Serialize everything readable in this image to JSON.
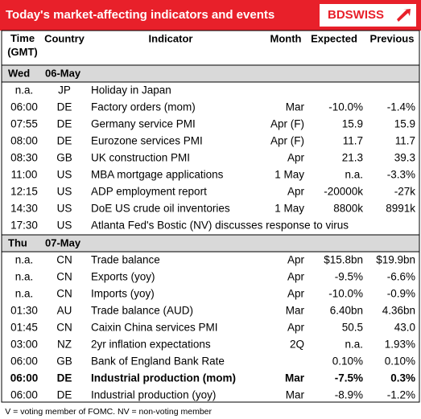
{
  "header": {
    "title": "Today's market-affecting indicators and events",
    "logo": "BDSWISS"
  },
  "columns": [
    "Time (GMT)",
    "Country",
    "Indicator",
    "Month",
    "Expected",
    "Previous"
  ],
  "sections": [
    {
      "day": "Wed",
      "date": "06-May",
      "bold_row": null,
      "rows": [
        [
          "n.a.",
          "JP",
          "Holiday in Japan",
          null,
          null,
          null
        ],
        [
          "06:00",
          "DE",
          "Factory orders (mom)",
          "Mar",
          "-10.0%",
          "-1.4%"
        ],
        [
          "07:55",
          "DE",
          "Germany service PMI",
          "Apr (F)",
          "15.9",
          "15.9"
        ],
        [
          "08:00",
          "DE",
          "Eurozone services PMI",
          "Apr (F)",
          "11.7",
          "11.7"
        ],
        [
          "08:30",
          "GB",
          "UK construction PMI",
          "Apr",
          "21.3",
          "39.3"
        ],
        [
          "11:00",
          "US",
          "MBA mortgage applications",
          "1 May",
          "n.a.",
          "-3.3%"
        ],
        [
          "12:15",
          "US",
          "ADP employment report",
          "Apr",
          "-20000k",
          "-27k"
        ],
        [
          "14:30",
          "US",
          "DoE US crude oil inventories",
          "1 May",
          "8800k",
          "8991k"
        ],
        [
          "17:30",
          "US",
          "Atlanta Fed's Bostic (NV) discusses response to virus",
          null,
          null,
          null
        ]
      ]
    },
    {
      "day": "Thu",
      "date": "07-May",
      "bold_row": 7,
      "rows": [
        [
          "n.a.",
          "CN",
          "Trade balance",
          "Apr",
          "$15.8bn",
          "$19.9bn"
        ],
        [
          "n.a.",
          "CN",
          "Exports (yoy)",
          "Apr",
          "-9.5%",
          "-6.6%"
        ],
        [
          "n.a.",
          "CN",
          "Imports (yoy)",
          "Apr",
          "-10.0%",
          "-0.9%"
        ],
        [
          "01:30",
          "AU",
          "Trade balance (AUD)",
          "Mar",
          "6.40bn",
          "4.36bn"
        ],
        [
          "01:45",
          "CN",
          "Caixin China services PMI",
          "Apr",
          "50.5",
          "43.0"
        ],
        [
          "03:00",
          "NZ",
          "2yr inflation expectations",
          "2Q",
          "n.a.",
          "1.93%"
        ],
        [
          "06:00",
          "GB",
          "Bank of England Bank Rate",
          null,
          "0.10%",
          "0.10%"
        ],
        [
          "06:00",
          "DE",
          "Industrial production (mom)",
          "Mar",
          "-7.5%",
          "0.3%"
        ],
        [
          "06:00",
          "DE",
          "Industrial production (yoy)",
          "Mar",
          "-8.9%",
          "-1.2%"
        ]
      ]
    }
  ],
  "footnote": "V = voting member of FOMC. NV = non-voting member"
}
